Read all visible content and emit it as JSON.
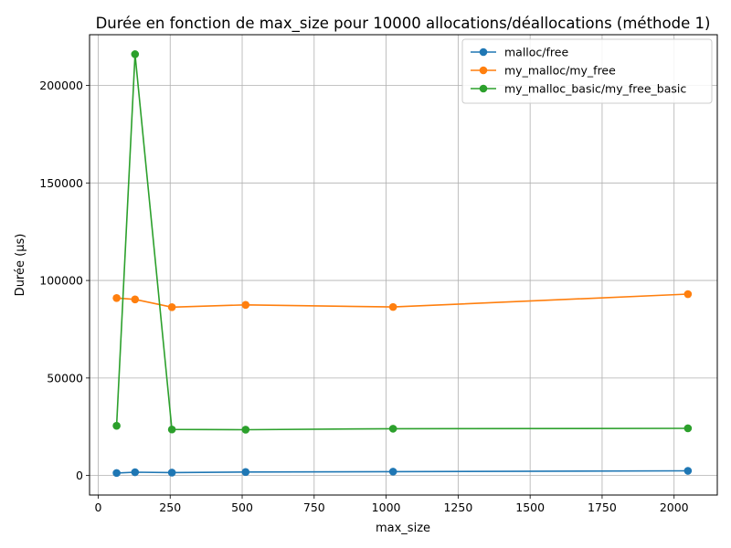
{
  "chart_data": {
    "type": "line",
    "title": "Durée en fonction de max_size pour 10000 allocations/déallocations (méthode 1)",
    "xlabel": "max_size",
    "ylabel": "Durée (µs)",
    "x": [
      64,
      128,
      256,
      512,
      1024,
      2048
    ],
    "xlim": [
      -30,
      2150
    ],
    "ylim": [
      -10000,
      226000
    ],
    "xticks": [
      0,
      250,
      500,
      750,
      1000,
      1250,
      1500,
      1750,
      2000
    ],
    "yticks": [
      0,
      50000,
      100000,
      150000,
      200000
    ],
    "grid": true,
    "legend_position": "top-right",
    "series": [
      {
        "name": "malloc/free",
        "color": "#1f77b4",
        "values": [
          1300,
          1700,
          1500,
          1800,
          2000,
          2400
        ]
      },
      {
        "name": "my_malloc/my_free",
        "color": "#ff7f0e",
        "values": [
          91000,
          90300,
          86300,
          87500,
          86400,
          93000
        ]
      },
      {
        "name": "my_malloc_basic/my_free_basic",
        "color": "#2ca02c",
        "values": [
          25500,
          216000,
          23600,
          23500,
          24000,
          24200
        ]
      }
    ]
  }
}
